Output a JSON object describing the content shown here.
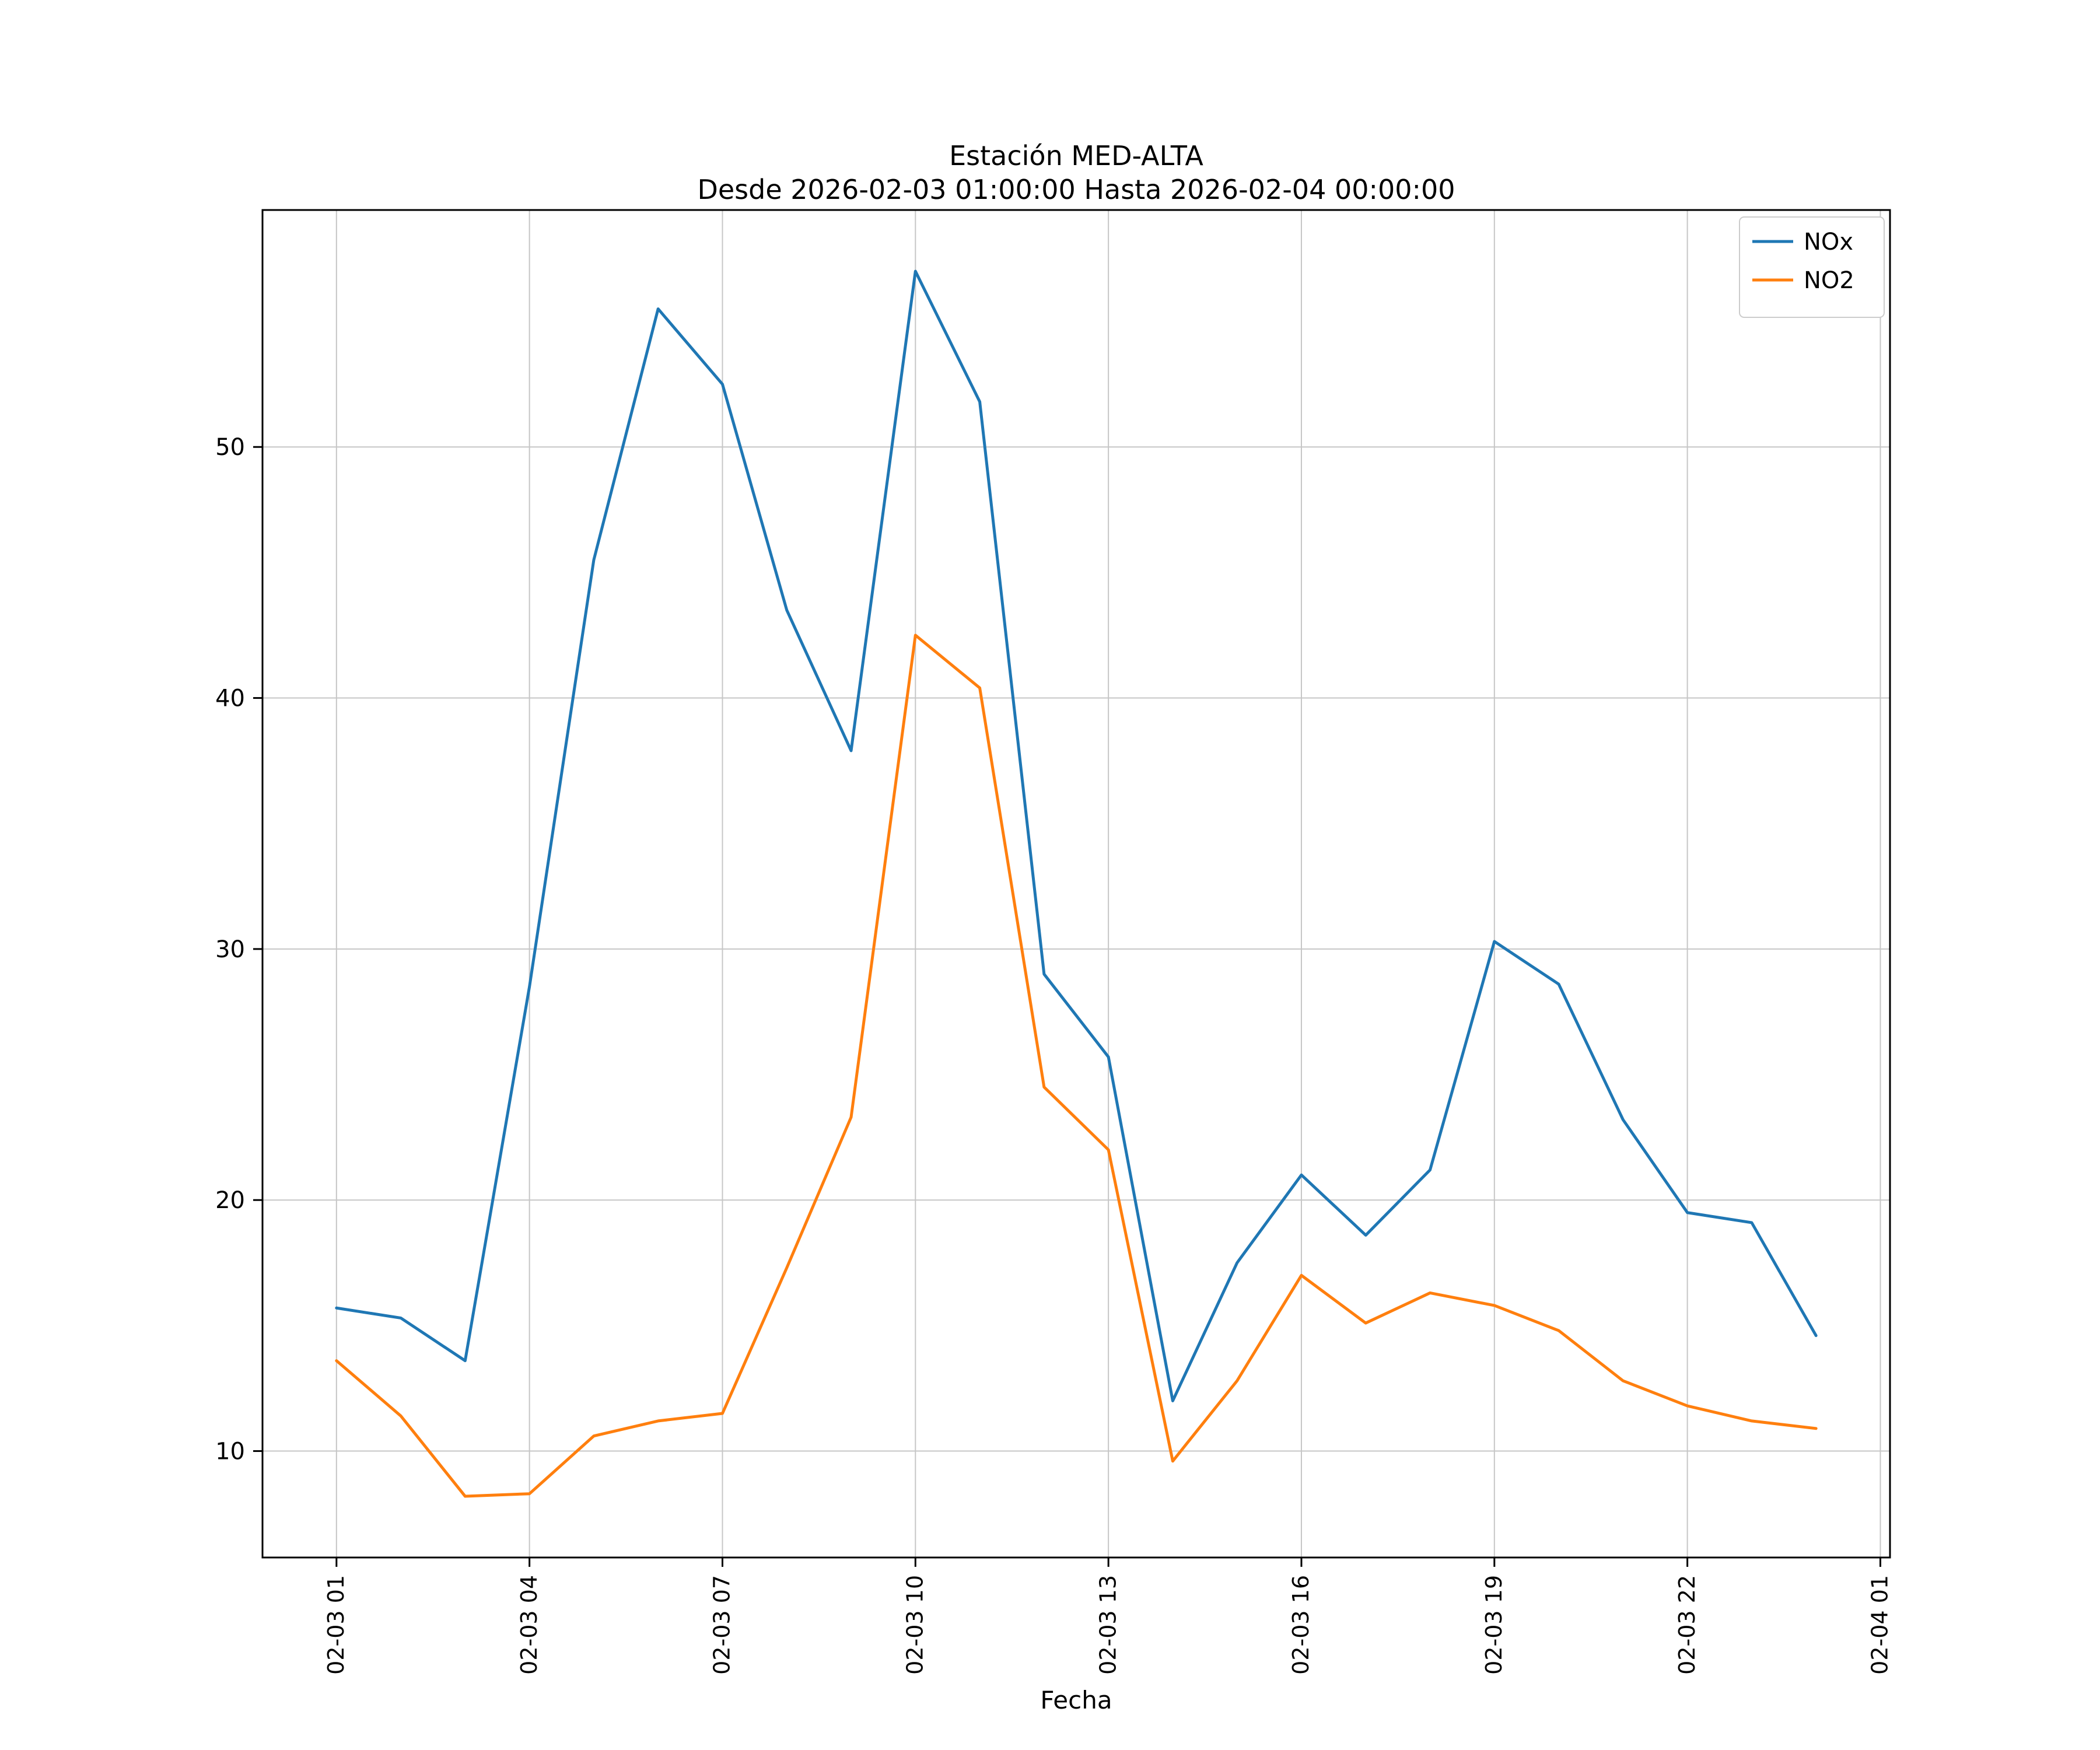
{
  "chart_data": {
    "type": "line",
    "title": "Estación MED-ALTA",
    "subtitle": "Desde 2026-02-03 01:00:00 Hasta 2026-02-04 00:00:00",
    "xlabel": "Fecha",
    "ylabel": "",
    "grid": true,
    "legend_position": "upper right",
    "x_times": [
      "02-03 01:00",
      "02-03 02:00",
      "02-03 03:00",
      "02-03 04:00",
      "02-03 05:00",
      "02-03 06:00",
      "02-03 07:00",
      "02-03 08:00",
      "02-03 09:00",
      "02-03 10:00",
      "02-03 11:00",
      "02-03 12:00",
      "02-03 13:00",
      "02-03 14:00",
      "02-03 15:00",
      "02-03 16:00",
      "02-03 17:00",
      "02-03 18:00",
      "02-03 19:00",
      "02-03 20:00",
      "02-03 21:00",
      "02-03 22:00",
      "02-03 23:00",
      "02-04 00:00"
    ],
    "x_tick_labels": [
      "02-03 01",
      "02-03 04",
      "02-03 07",
      "02-03 10",
      "02-03 13",
      "02-03 16",
      "02-03 19",
      "02-03 22",
      "02-04 01"
    ],
    "x_tick_hours": [
      0,
      3,
      6,
      9,
      12,
      15,
      18,
      21,
      24
    ],
    "y_ticks": [
      10,
      20,
      30,
      40,
      50
    ],
    "xlim_hours": [
      -1.15,
      24.15
    ],
    "ylim": [
      5.76,
      59.44
    ],
    "series": [
      {
        "name": "NOx",
        "color": "#1f77b4",
        "values": [
          15.7,
          15.3,
          13.6,
          28.5,
          45.5,
          55.5,
          52.5,
          43.5,
          37.9,
          57.0,
          51.8,
          29.0,
          25.7,
          12.0,
          17.5,
          21.0,
          18.6,
          21.2,
          30.3,
          28.6,
          23.2,
          19.5,
          19.1,
          14.6
        ]
      },
      {
        "name": "NO2",
        "color": "#ff7f0e",
        "values": [
          13.6,
          11.4,
          8.2,
          8.3,
          10.6,
          11.2,
          11.5,
          17.3,
          23.3,
          42.5,
          40.4,
          24.5,
          22.0,
          9.6,
          12.8,
          17.0,
          15.1,
          16.3,
          15.8,
          14.8,
          12.8,
          11.8,
          11.2,
          10.9
        ]
      }
    ],
    "colors": {
      "grid": "#c6c6c6",
      "axes_border": "#000000",
      "legend_border": "#cccccc",
      "background": "#ffffff"
    }
  }
}
